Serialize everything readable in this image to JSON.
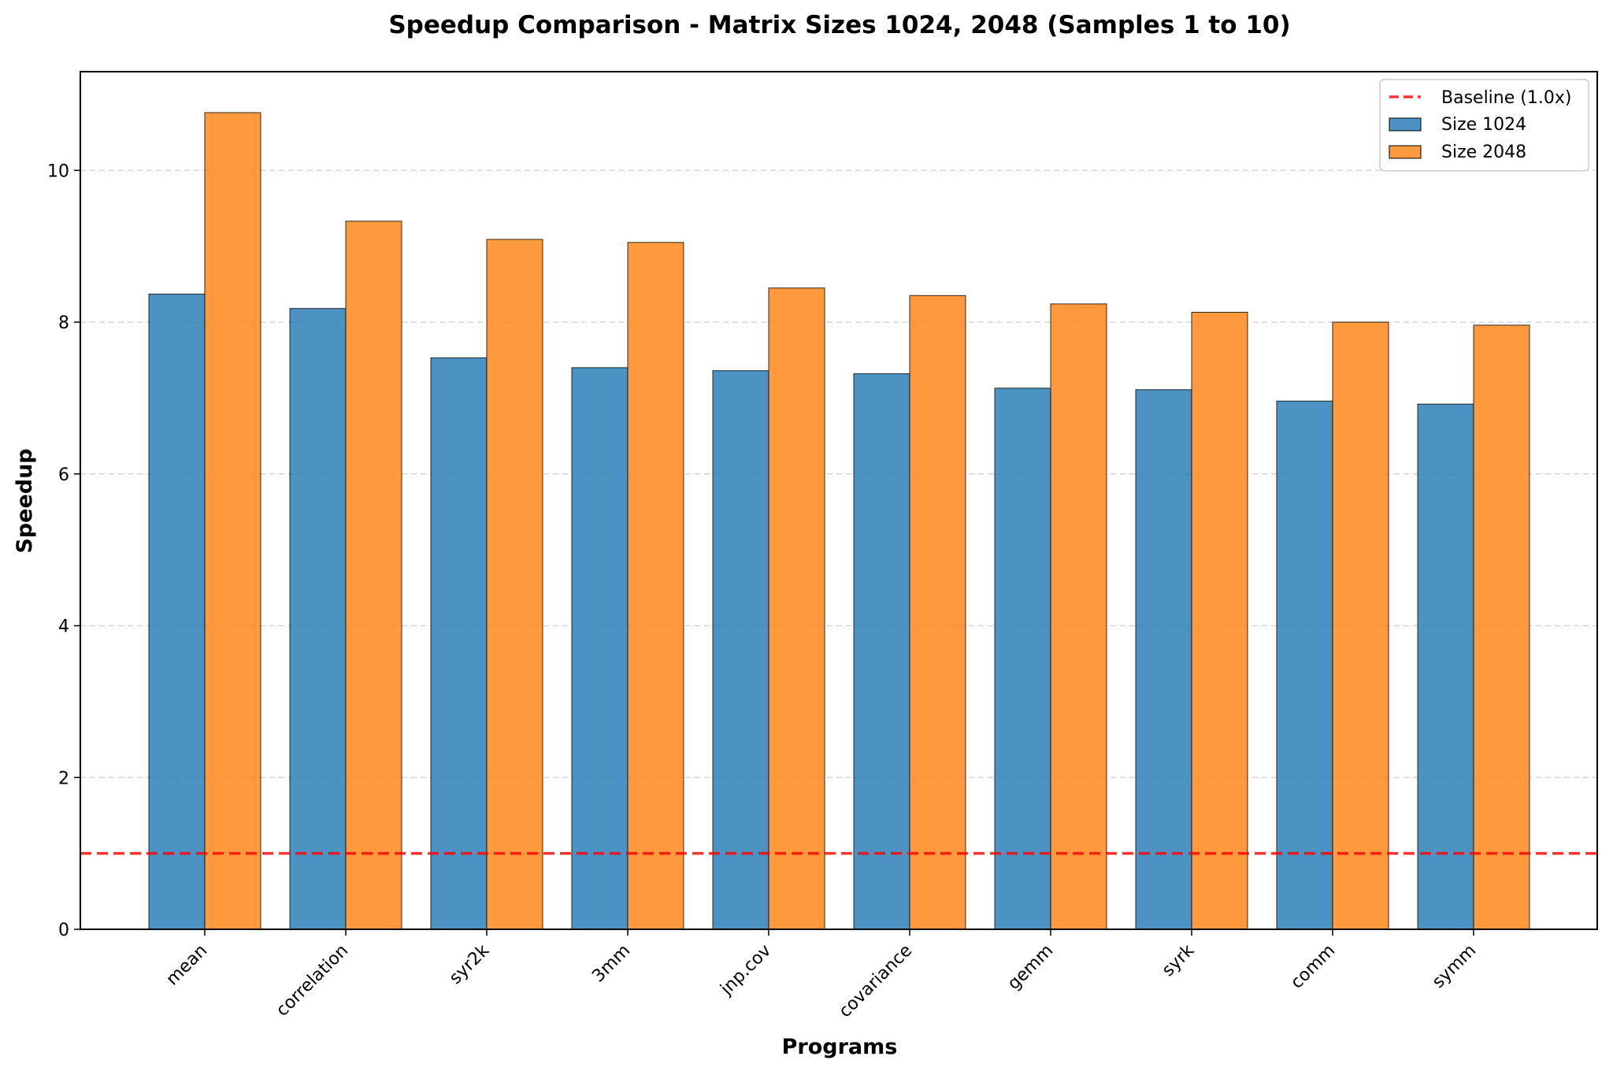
{
  "chart_data": {
    "type": "bar",
    "title": "Speedup Comparison - Matrix Sizes 1024, 2048 (Samples 1 to 10)",
    "xlabel": "Programs",
    "ylabel": "Speedup",
    "categories": [
      "mean",
      "correlation",
      "syr2k",
      "3mm",
      "jnp.cov",
      "covariance",
      "gemm",
      "syrk",
      "comm",
      "symm"
    ],
    "series": [
      {
        "name": "Size 1024",
        "color": "#1f77b4",
        "values": [
          8.37,
          8.18,
          7.53,
          7.4,
          7.36,
          7.32,
          7.13,
          7.11,
          6.96,
          6.92
        ]
      },
      {
        "name": "Size 2048",
        "color": "#ff7f0e",
        "values": [
          10.76,
          9.33,
          9.09,
          9.05,
          8.45,
          8.35,
          8.24,
          8.13,
          8.0,
          7.96
        ]
      }
    ],
    "baseline": {
      "label": "Baseline (1.0x)",
      "value": 1.0,
      "color": "#ff0000",
      "style": "dashed"
    },
    "ylim": [
      0,
      11.3
    ],
    "yticks": [
      0,
      2,
      4,
      6,
      8,
      10
    ],
    "grid": "y-dashed",
    "legend_position": "top-right"
  }
}
